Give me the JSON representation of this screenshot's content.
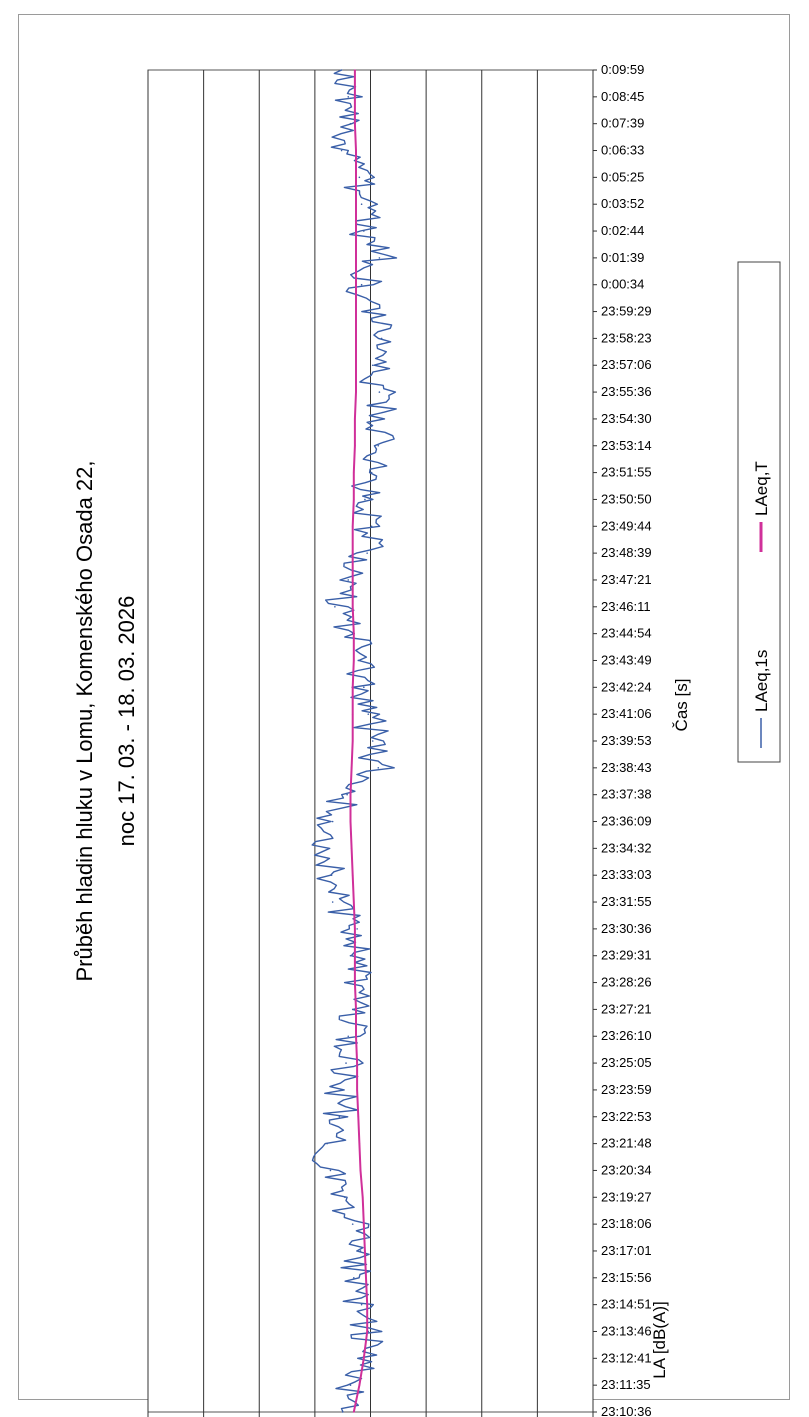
{
  "chart_data": {
    "type": "line",
    "title": "Průběh hladin hluku v Lomu, Komenského Osada 22,",
    "subtitle": "noc 17. 03. - 18. 03. 2026",
    "xlabel": "Čas [s]",
    "ylabel": "LA [dB(A)]",
    "ylim": [
      20,
      60
    ],
    "yticks": [
      20,
      25,
      30,
      35,
      40,
      45,
      50,
      55,
      60
    ],
    "grid": true,
    "legend_position": "bottom",
    "categories": [
      "23:10:36",
      "23:11:35",
      "23:12:41",
      "23:13:46",
      "23:14:51",
      "23:15:56",
      "23:17:01",
      "23:18:06",
      "23:19:27",
      "23:20:34",
      "23:21:48",
      "23:22:53",
      "23:23:59",
      "23:25:05",
      "23:26:10",
      "23:27:21",
      "23:28:26",
      "23:29:31",
      "23:30:36",
      "23:31:55",
      "23:33:03",
      "23:34:32",
      "23:36:09",
      "23:37:38",
      "23:38:43",
      "23:39:53",
      "23:41:06",
      "23:42:24",
      "23:43:49",
      "23:44:54",
      "23:46:11",
      "23:47:21",
      "23:48:39",
      "23:49:44",
      "23:50:50",
      "23:51:55",
      "23:53:14",
      "23:54:30",
      "23:55:36",
      "23:57:06",
      "23:58:23",
      "23:59:29",
      "0:00:34",
      "0:01:39",
      "0:02:44",
      "0:03:52",
      "0:05:25",
      "0:06:33",
      "0:07:39",
      "0:08:45",
      "0:09:59"
    ],
    "series": [
      {
        "name": "LAeq,1s",
        "color": "#3a5fa8",
        "values": [
          42.5,
          41.8,
          40.6,
          40.2,
          40.8,
          41.5,
          40.9,
          41.6,
          42.3,
          43.6,
          43.9,
          42.8,
          42.5,
          42.2,
          42.0,
          41.6,
          41.4,
          41.8,
          41.2,
          43.4,
          43.5,
          43.8,
          43.4,
          42.1,
          39.3,
          39.8,
          40.2,
          40.6,
          41.1,
          41.6,
          43.2,
          42.0,
          40.3,
          39.9,
          40.5,
          39.9,
          39.3,
          38.9,
          39.2,
          39.8,
          39.0,
          40.4,
          40.8,
          39.2,
          40.6,
          40.8,
          41.0,
          42.6,
          41.8,
          42.0,
          42.6
        ]
      },
      {
        "name": "LAeq,T",
        "color": "#d0309a",
        "values": [
          41.5,
          41.0,
          40.6,
          40.3,
          40.3,
          40.4,
          40.5,
          40.6,
          40.7,
          40.9,
          41.0,
          41.1,
          41.2,
          41.2,
          41.3,
          41.3,
          41.4,
          41.4,
          41.4,
          41.5,
          41.6,
          41.7,
          41.8,
          41.8,
          41.7,
          41.6,
          41.6,
          41.6,
          41.5,
          41.5,
          41.6,
          41.6,
          41.6,
          41.6,
          41.5,
          41.5,
          41.4,
          41.4,
          41.3,
          41.3,
          41.3,
          41.3,
          41.3,
          41.3,
          41.3,
          41.3,
          41.3,
          41.3,
          41.4,
          41.4,
          41.4
        ]
      }
    ]
  }
}
